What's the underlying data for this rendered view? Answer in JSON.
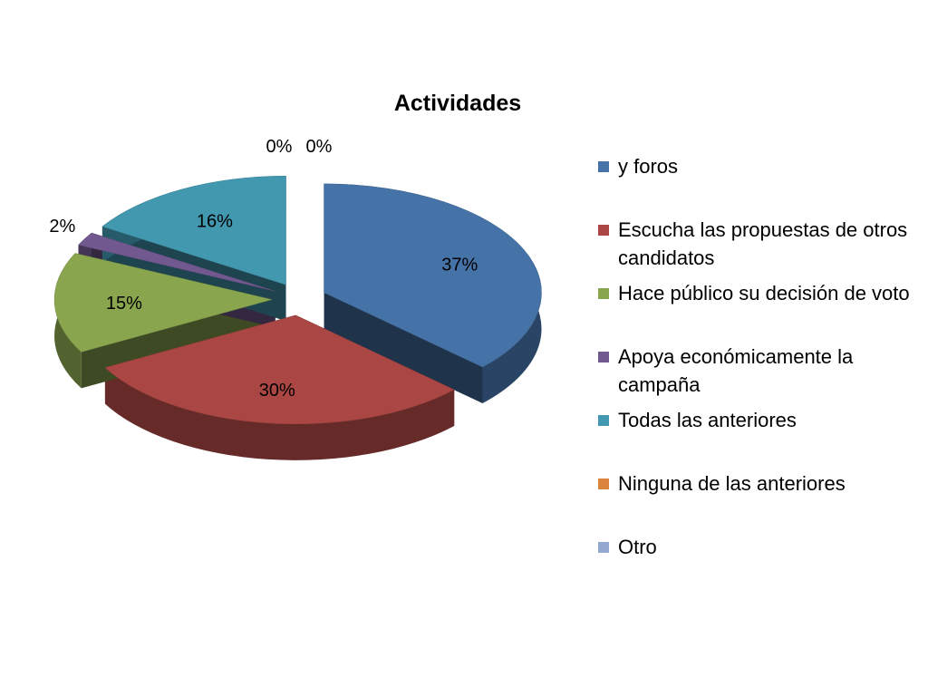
{
  "chart_data": {
    "type": "pie",
    "title": "Actividades",
    "slices": [
      {
        "label": " y foros",
        "value": 37,
        "display": "37%",
        "color": "#4572A7"
      },
      {
        "label": "Escucha las propuestas de otros candidatos",
        "value": 30,
        "display": "30%",
        "color": "#AA4643"
      },
      {
        "label": "Hace público su decisión de voto",
        "value": 15,
        "display": "15%",
        "color": "#89A54E"
      },
      {
        "label": "Apoya económicamente la campaña",
        "value": 2,
        "display": "2%",
        "color": "#71588F"
      },
      {
        "label": "Todas las anteriores",
        "value": 16,
        "display": "16%",
        "color": "#4198AF"
      },
      {
        "label": "Ninguna de las anteriores",
        "value": 0,
        "display": "0%",
        "color": "#DB843D"
      },
      {
        "label": "Otro",
        "value": 0,
        "display": "0%",
        "color": "#93A9CF"
      }
    ],
    "legend_position": "right",
    "style": "3d-exploded-pie"
  }
}
